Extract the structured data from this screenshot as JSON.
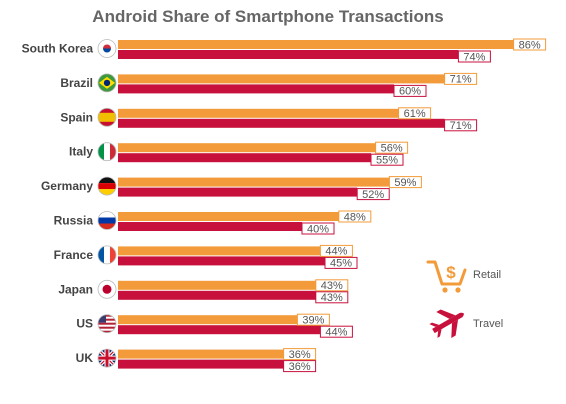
{
  "chart_data": {
    "type": "bar",
    "orientation": "horizontal",
    "title": "Android Share of Smartphone Transactions",
    "categories": [
      "South Korea",
      "Brazil",
      "Spain",
      "Italy",
      "Germany",
      "Russia",
      "France",
      "Japan",
      "US",
      "UK"
    ],
    "series": [
      {
        "name": "Retail",
        "color": "#f39b3a",
        "values": [
          86,
          71,
          61,
          56,
          59,
          48,
          44,
          43,
          39,
          36
        ],
        "labels": [
          "86%",
          "71%",
          "61%",
          "56%",
          "59%",
          "48%",
          "44%",
          "43%",
          "39%",
          "36%"
        ]
      },
      {
        "name": "Travel",
        "color": "#c7113c",
        "values": [
          74,
          60,
          71,
          55,
          52,
          40,
          45,
          43,
          44,
          36
        ],
        "labels": [
          "74%",
          "60%",
          "71%",
          "55%",
          "52%",
          "40%",
          "45%",
          "43%",
          "44%",
          "36%"
        ]
      }
    ],
    "xlim": [
      0,
      100
    ],
    "legend_position": "right",
    "legend_icons": [
      "cart-dollar-icon",
      "airplane-icon"
    ],
    "grid": false
  }
}
